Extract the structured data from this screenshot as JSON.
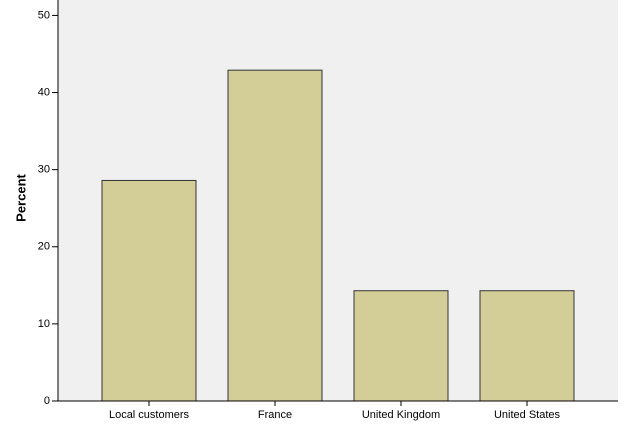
{
  "chart_data": {
    "type": "bar",
    "y_label": "Percent",
    "categories": [
      "Local customers",
      "France",
      "United Kingdom",
      "United States"
    ],
    "values": [
      28.6,
      42.9,
      14.3,
      14.3
    ],
    "color": "#d3ce97",
    "ylim": [
      0,
      52
    ],
    "yticks": [
      0,
      10,
      20,
      30,
      40,
      50
    ],
    "grid": false
  }
}
